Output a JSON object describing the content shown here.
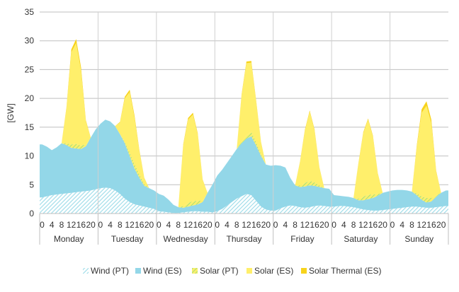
{
  "chart_data": {
    "type": "area",
    "stacked": true,
    "ylabel": "[GW]",
    "ylim": [
      0,
      35
    ],
    "yticks": [
      0,
      5,
      10,
      15,
      20,
      25,
      30,
      35
    ],
    "grid": true,
    "legend_position": "bottom",
    "days": [
      "Monday",
      "Tuesday",
      "Wednesday",
      "Thursday",
      "Friday",
      "Saturday",
      "Sunday"
    ],
    "hour_ticks": [
      "0",
      "4",
      "8",
      "12",
      "16",
      "20"
    ],
    "hours": [
      0,
      2,
      4,
      6,
      8,
      10,
      12,
      14,
      16,
      18,
      20,
      22
    ],
    "colors": {
      "wind_pt": "#9adbe8",
      "wind_es": "#93d7e8",
      "solar_pt": "#a7e07a",
      "solar_es": "#ffef6b",
      "solar_thermal_es": "#f7d31c",
      "grid": "#bfbfbf",
      "divider": "#d0d0d0"
    },
    "series": [
      {
        "name": "Wind (PT)",
        "values": [
          2.8,
          3.0,
          3.2,
          3.3,
          3.4,
          3.5,
          3.6,
          3.7,
          3.8,
          3.9,
          4.0,
          4.2,
          4.4,
          4.5,
          4.4,
          4.0,
          3.4,
          2.6,
          2.0,
          1.6,
          1.4,
          1.2,
          1.0,
          0.8,
          0.4,
          0.3,
          0.2,
          0.1,
          0.1,
          0.2,
          0.3,
          0.4,
          0.4,
          0.3,
          0.3,
          0.2,
          0.4,
          0.8,
          1.4,
          2.0,
          2.6,
          3.0,
          3.4,
          3.2,
          2.2,
          1.2,
          0.7,
          0.5,
          0.5,
          0.9,
          1.2,
          1.4,
          1.3,
          1.1,
          1.0,
          1.1,
          1.3,
          1.4,
          1.3,
          1.2,
          1.2,
          1.3,
          1.3,
          1.2,
          1.1,
          0.9,
          0.7,
          0.6,
          0.5,
          0.5,
          0.6,
          0.7,
          0.8,
          0.9,
          1.0,
          1.1,
          1.2,
          1.2,
          1.1,
          1.0,
          1.0,
          1.1,
          1.2,
          1.3
        ]
      },
      {
        "name": "Wind (ES)",
        "values": [
          9.2,
          8.6,
          7.8,
          8.2,
          8.8,
          8.4,
          7.8,
          7.6,
          7.4,
          7.8,
          9.2,
          10.4,
          11.2,
          11.8,
          11.6,
          11.2,
          10.4,
          9.6,
          8.0,
          6.2,
          4.8,
          3.6,
          3.4,
          3.2,
          3.0,
          2.8,
          2.2,
          1.4,
          1.0,
          0.8,
          0.9,
          1.0,
          1.2,
          1.7,
          3.3,
          4.8,
          6.2,
          6.8,
          7.4,
          8.0,
          8.6,
          9.2,
          9.6,
          10.2,
          9.6,
          8.8,
          7.8,
          7.8,
          7.9,
          7.4,
          6.8,
          4.8,
          3.6,
          3.5,
          3.7,
          3.8,
          3.5,
          3.2,
          3.1,
          3.1,
          2.0,
          1.8,
          1.7,
          1.7,
          1.6,
          1.4,
          1.6,
          1.9,
          2.2,
          2.6,
          3.0,
          3.1,
          3.2,
          3.2,
          3.1,
          2.9,
          2.6,
          2.0,
          1.3,
          0.9,
          1.1,
          1.8,
          2.4,
          2.7
        ]
      },
      {
        "name": "Solar (PT)",
        "values": [
          0,
          0,
          0,
          0,
          0,
          0.3,
          0.6,
          0.8,
          0.6,
          0.3,
          0,
          0,
          0,
          0,
          0,
          0,
          0,
          0.3,
          0.6,
          0.8,
          0.6,
          0.3,
          0,
          0,
          0,
          0,
          0,
          0,
          0,
          0.3,
          0.6,
          0.8,
          0.6,
          0.3,
          0,
          0,
          0,
          0,
          0,
          0,
          0,
          0.3,
          0.6,
          0.8,
          0.6,
          0.3,
          0,
          0,
          0,
          0,
          0,
          0,
          0,
          0.3,
          0.6,
          0.8,
          0.6,
          0.3,
          0,
          0,
          0,
          0,
          0,
          0,
          0,
          0.3,
          0.6,
          0.8,
          0.6,
          0.3,
          0,
          0,
          0,
          0,
          0,
          0,
          0,
          0.3,
          0.6,
          0.8,
          0.6,
          0.3,
          0,
          0
        ]
      },
      {
        "name": "Solar (ES)",
        "values": [
          0,
          0,
          0,
          0,
          0,
          6.0,
          16.0,
          17.5,
          13.0,
          4.0,
          0,
          0,
          0,
          0,
          0,
          0,
          2.0,
          7.5,
          10.5,
          8.0,
          4.0,
          1.0,
          0,
          0,
          0,
          0,
          0,
          0,
          0,
          10.5,
          14.5,
          15.0,
          11.5,
          3.5,
          0,
          0,
          0,
          0,
          0,
          0,
          0,
          8.0,
          12.5,
          12.0,
          7.0,
          2.0,
          0,
          0,
          0,
          0,
          0,
          0,
          0,
          4.0,
          9.0,
          12.0,
          9.0,
          3.0,
          0,
          0,
          0,
          0,
          0,
          0,
          0,
          6.0,
          11.0,
          13.0,
          10.0,
          3.5,
          0,
          0,
          0,
          0,
          0,
          0,
          0,
          8.0,
          14.5,
          16.0,
          13.0,
          4.0,
          0,
          0
        ]
      },
      {
        "name": "Solar Thermal (ES)",
        "values": [
          0,
          0,
          0,
          0,
          0,
          0.2,
          0.5,
          0.7,
          0.6,
          0.2,
          0,
          0,
          0,
          0,
          0,
          0,
          0.1,
          0.3,
          0.4,
          0.4,
          0.2,
          0.1,
          0,
          0,
          0,
          0,
          0,
          0,
          0,
          0.2,
          0.3,
          0.3,
          0.2,
          0.1,
          0,
          0,
          0,
          0,
          0,
          0,
          0,
          0.2,
          0.3,
          0.3,
          0.2,
          0.1,
          0,
          0,
          0,
          0,
          0,
          0,
          0,
          0.1,
          0.2,
          0.2,
          0.2,
          0.1,
          0,
          0,
          0,
          0,
          0,
          0,
          0,
          0.1,
          0.2,
          0.2,
          0.2,
          0.1,
          0,
          0,
          0,
          0,
          0,
          0,
          0,
          0.3,
          0.6,
          0.8,
          0.6,
          0.2,
          0,
          0
        ]
      }
    ]
  }
}
